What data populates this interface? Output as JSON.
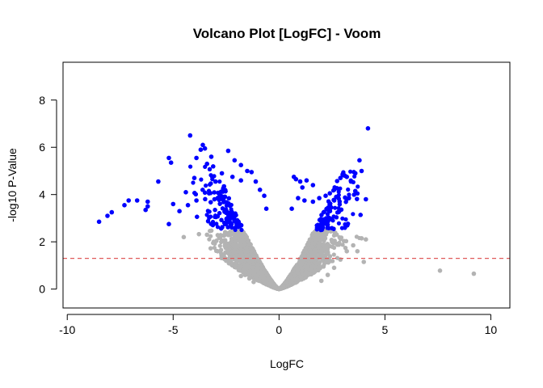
{
  "chart_data": {
    "type": "scatter",
    "title": "Volcano Plot [LogFC] - Voom",
    "xlabel": "LogFC",
    "ylabel": "-log10 P-Value",
    "xlim": [
      -10.2,
      10.9
    ],
    "ylim": [
      -0.8,
      9.6
    ],
    "xticks": [
      -10,
      -5,
      0,
      5,
      10
    ],
    "xtick_labels": [
      "-10",
      "-5",
      "0",
      "5",
      "10"
    ],
    "yticks": [
      0,
      2,
      4,
      6,
      8
    ],
    "ytick_labels": [
      "0",
      "2",
      "4",
      "6",
      "8"
    ],
    "grid": false,
    "legend": "none",
    "threshold": {
      "y": 1.3,
      "color": "#e05a5a",
      "style": "dashed"
    },
    "significance_cutoff": 2.5,
    "colors": {
      "significant": "#0000ff",
      "nonsignificant": "#b3b3b3"
    },
    "series": [
      {
        "category": "significant",
        "color": "#0000ff",
        "points": [
          [
            -8.5,
            2.85
          ],
          [
            -8.1,
            3.1
          ],
          [
            -7.9,
            3.25
          ],
          [
            -7.3,
            3.55
          ],
          [
            -7.1,
            3.75
          ],
          [
            -6.7,
            3.75
          ],
          [
            -6.2,
            3.7
          ],
          [
            -6.2,
            3.5
          ],
          [
            -6.3,
            3.35
          ],
          [
            -5.7,
            4.55
          ],
          [
            -5.2,
            5.55
          ],
          [
            -5.1,
            5.35
          ],
          [
            -5.0,
            3.6
          ],
          [
            -5.2,
            2.75
          ],
          [
            -4.7,
            3.3
          ],
          [
            -4.4,
            4.1
          ],
          [
            -4.2,
            6.5
          ],
          [
            -3.9,
            5.55
          ],
          [
            -3.7,
            5.9
          ],
          [
            -3.6,
            6.1
          ],
          [
            -3.5,
            5.95
          ],
          [
            -3.4,
            5.3
          ],
          [
            -3.2,
            5.6
          ],
          [
            -2.4,
            5.85
          ],
          [
            -2.1,
            5.45
          ],
          [
            -1.8,
            5.25
          ],
          [
            -1.5,
            5.0
          ],
          [
            -4.0,
            4.7
          ],
          [
            -3.9,
            3.75
          ],
          [
            -4.3,
            3.55
          ],
          [
            -3.0,
            4.55
          ],
          [
            -2.7,
            4.9
          ],
          [
            -2.2,
            4.75
          ],
          [
            -1.8,
            4.6
          ],
          [
            -1.3,
            4.95
          ],
          [
            -1.1,
            4.55
          ],
          [
            -0.9,
            4.2
          ],
          [
            -0.7,
            3.95
          ],
          [
            -0.6,
            3.4
          ],
          [
            -2.6,
            4.35
          ],
          [
            -2.9,
            3.85
          ],
          [
            -3.3,
            4.05
          ],
          [
            0.7,
            4.75
          ],
          [
            0.8,
            4.65
          ],
          [
            1.0,
            4.55
          ],
          [
            1.3,
            4.6
          ],
          [
            1.6,
            4.4
          ],
          [
            1.1,
            4.3
          ],
          [
            2.6,
            4.2
          ],
          [
            2.9,
            4.7
          ],
          [
            3.0,
            4.85
          ],
          [
            3.1,
            4.8
          ],
          [
            3.2,
            4.75
          ],
          [
            3.4,
            4.55
          ],
          [
            3.6,
            4.9
          ],
          [
            3.8,
            5.45
          ],
          [
            3.9,
            5.0
          ],
          [
            4.1,
            3.8
          ],
          [
            4.2,
            6.8
          ],
          [
            2.7,
            3.9
          ],
          [
            3.3,
            3.85
          ],
          [
            3.6,
            4.15
          ],
          [
            2.2,
            3.95
          ],
          [
            2.4,
            4.05
          ],
          [
            1.9,
            3.85
          ],
          [
            1.6,
            3.7
          ],
          [
            0.6,
            3.4
          ],
          [
            0.9,
            3.85
          ],
          [
            1.2,
            3.75
          ]
        ]
      },
      {
        "category": "nonsignificant",
        "color": "#b3b3b3",
        "points": [
          [
            -4.5,
            2.2
          ],
          [
            -3.4,
            2.3
          ],
          [
            -3.1,
            1.95
          ],
          [
            -2.9,
            1.6
          ],
          [
            -2.7,
            1.45
          ],
          [
            -2.5,
            1.2
          ],
          [
            -2.3,
            1.3
          ],
          [
            -2.1,
            0.95
          ],
          [
            -1.9,
            0.8
          ],
          [
            -1.8,
            0.55
          ],
          [
            -1.6,
            0.6
          ],
          [
            -1.4,
            0.45
          ],
          [
            -1.2,
            0.3
          ],
          [
            2.0,
            0.35
          ],
          [
            2.3,
            0.6
          ],
          [
            2.6,
            0.9
          ],
          [
            2.9,
            1.25
          ],
          [
            3.2,
            1.6
          ],
          [
            3.5,
            1.85
          ],
          [
            3.9,
            2.15
          ],
          [
            4.0,
            1.15
          ],
          [
            4.1,
            2.1
          ],
          [
            3.7,
            1.6
          ],
          [
            7.6,
            0.78
          ],
          [
            9.2,
            0.65
          ]
        ]
      }
    ]
  }
}
